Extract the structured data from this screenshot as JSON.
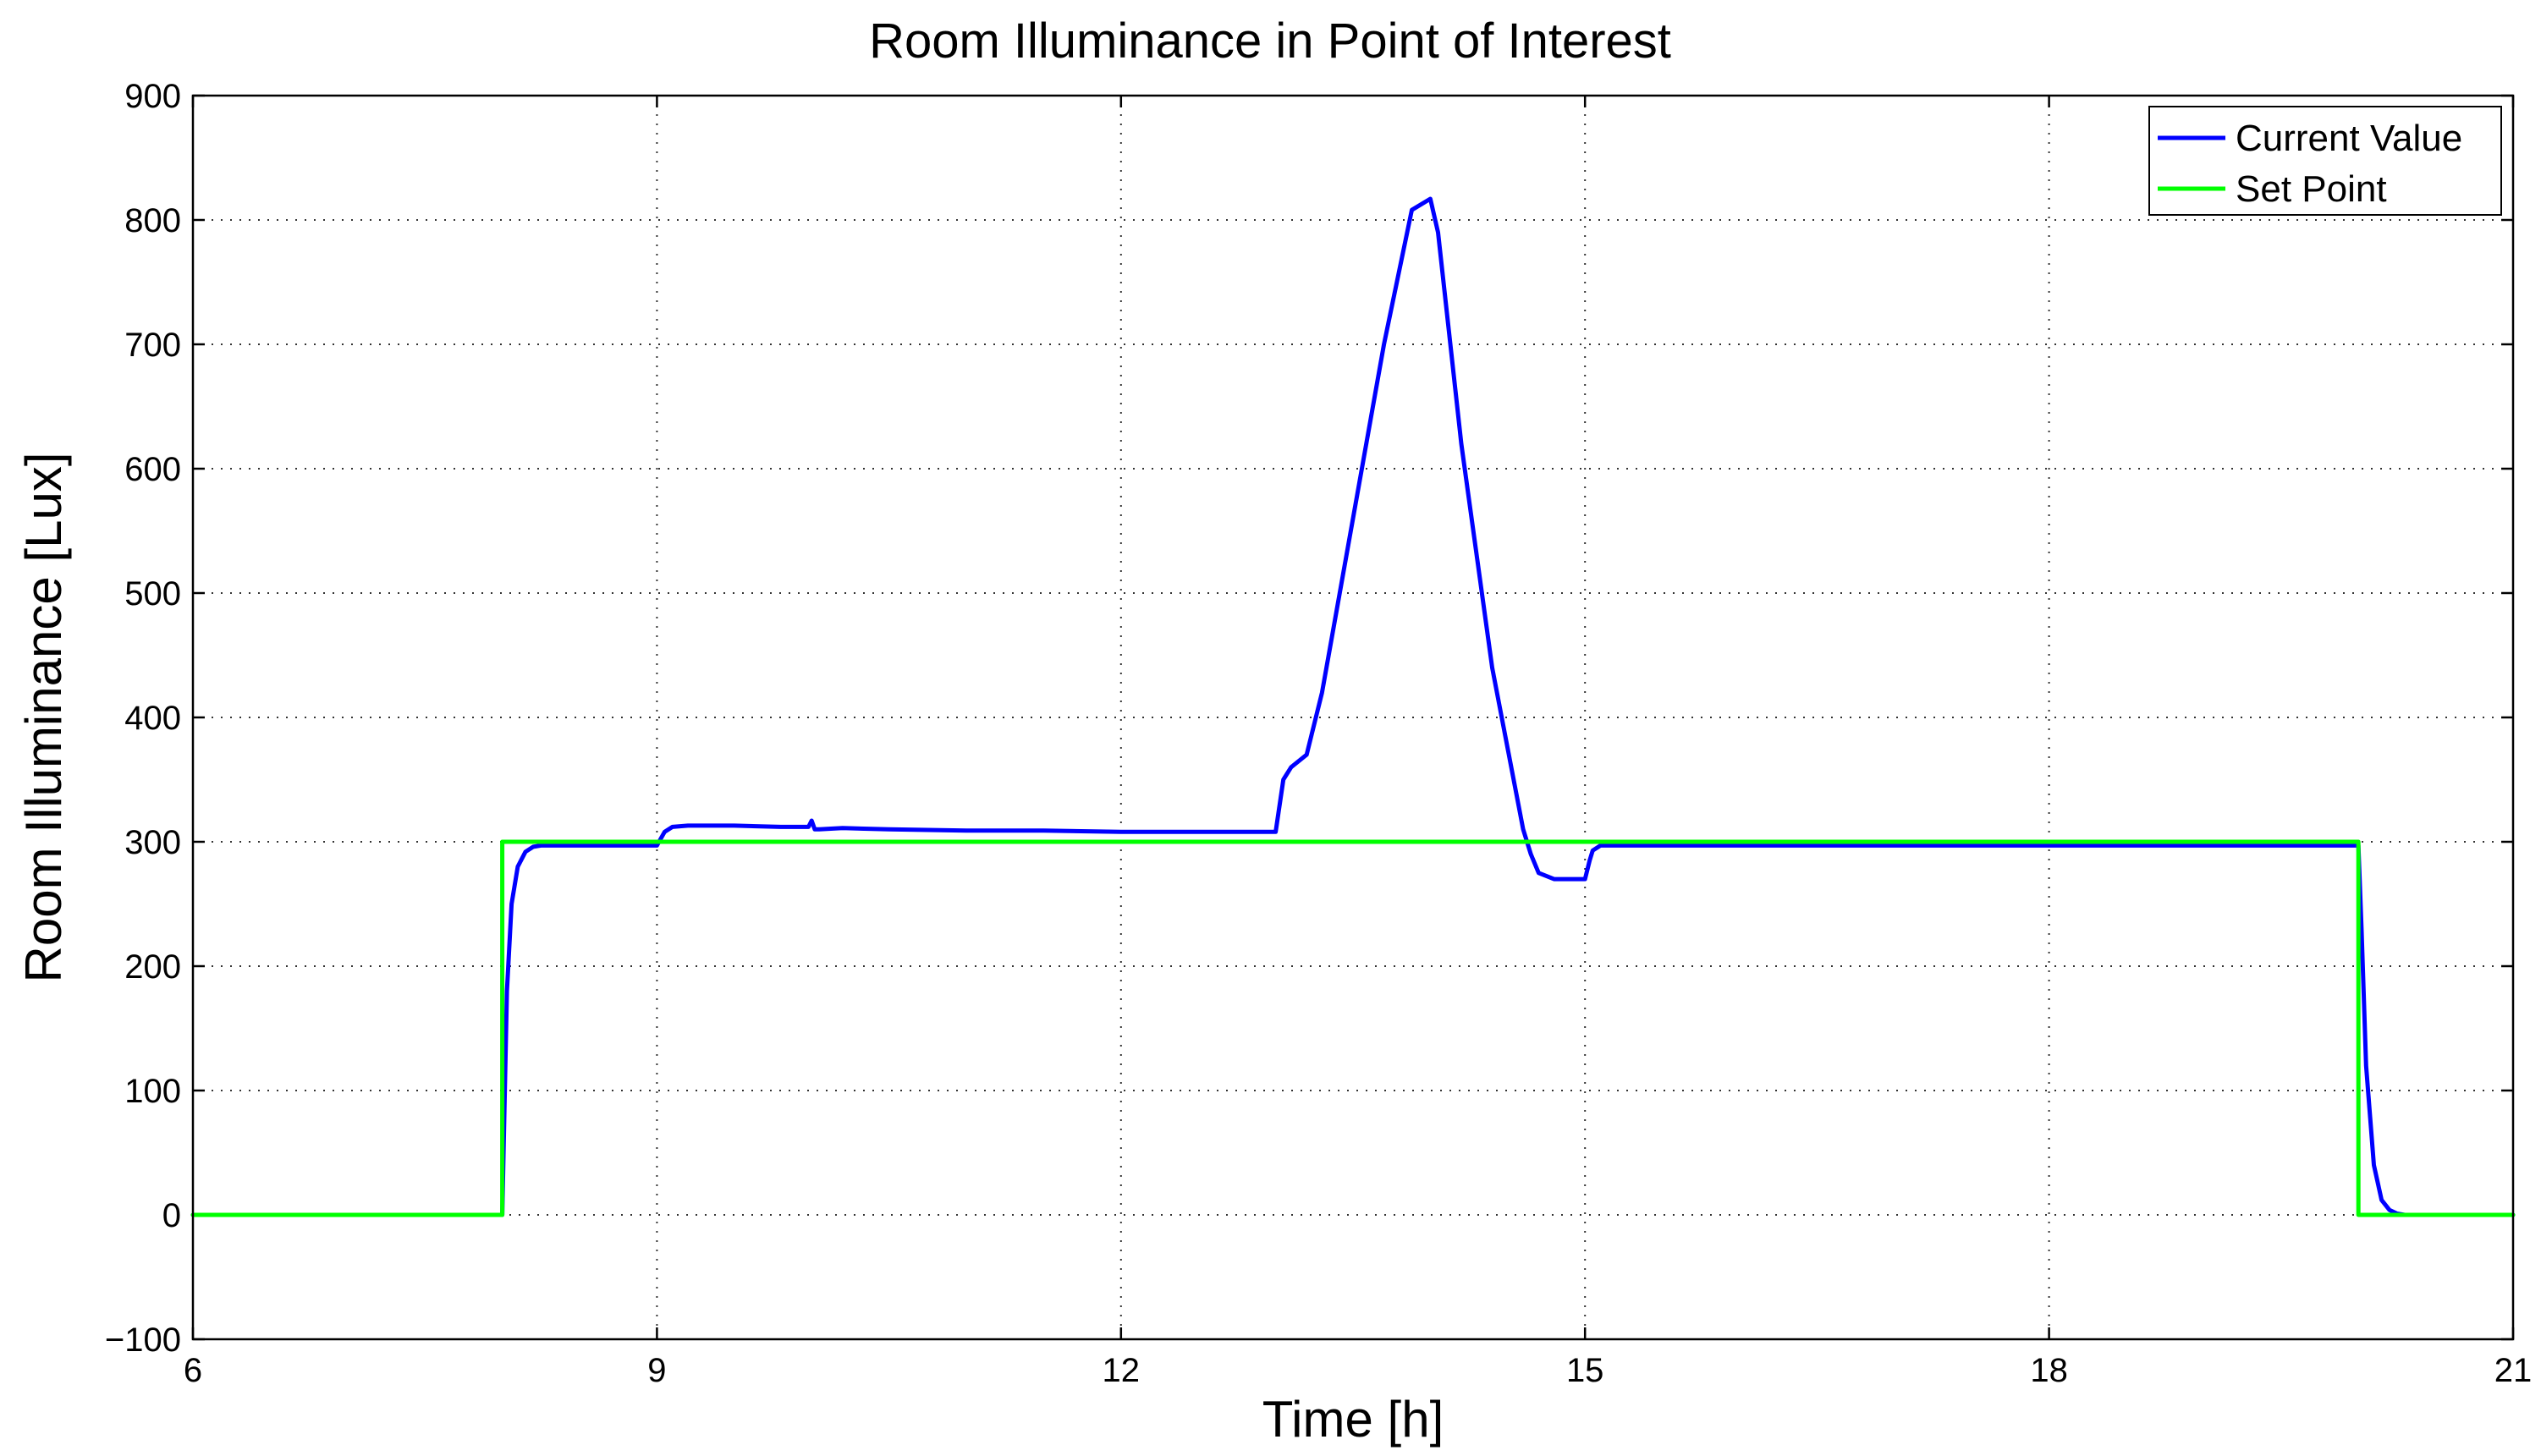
{
  "chart_data": {
    "type": "line",
    "title": "Room Illuminance in Point of Interest",
    "xlabel": "Time [h]",
    "ylabel": "Room Illuminance [Lux]",
    "xlim": [
      6,
      21
    ],
    "ylim": [
      -100,
      900
    ],
    "xticks": [
      6,
      9,
      12,
      15,
      18,
      21
    ],
    "yticks": [
      -100,
      0,
      100,
      200,
      300,
      400,
      500,
      600,
      700,
      800,
      900
    ],
    "xtick_labels": [
      "6",
      "9",
      "12",
      "15",
      "18",
      "21"
    ],
    "ytick_labels": [
      "−100",
      "0",
      "100",
      "200",
      "300",
      "400",
      "500",
      "600",
      "700",
      "800",
      "900"
    ],
    "grid": true,
    "legend_position": "top-right",
    "series": [
      {
        "name": "Current Value",
        "color": "#0000ff",
        "x": [
          6,
          8.0,
          8.01,
          8.03,
          8.06,
          8.1,
          8.15,
          8.2,
          8.25,
          8.3,
          9.0,
          9.05,
          9.1,
          9.2,
          9.5,
          9.8,
          9.98,
          10.0,
          10.02,
          10.05,
          10.2,
          10.5,
          11.0,
          11.5,
          12.0,
          12.5,
          13.0,
          13.05,
          13.1,
          13.2,
          13.3,
          13.5,
          13.7,
          13.88,
          14.0,
          14.05,
          14.2,
          14.4,
          14.6,
          14.65,
          14.7,
          14.8,
          14.9,
          14.97,
          15.0,
          15.03,
          15.05,
          15.1,
          16.0,
          17.0,
          18.0,
          19.0,
          20.0,
          20.02,
          20.05,
          20.1,
          20.15,
          20.2,
          20.25,
          20.3,
          20.4,
          21.0
        ],
        "y": [
          0,
          0,
          60,
          180,
          250,
          280,
          292,
          296,
          297,
          297,
          297,
          308,
          312,
          313,
          313,
          312,
          312,
          317,
          310,
          310,
          311,
          310,
          309,
          309,
          308,
          308,
          308,
          350,
          360,
          370,
          420,
          560,
          700,
          808,
          817,
          790,
          620,
          440,
          310,
          290,
          275,
          270,
          270,
          270,
          270,
          285,
          293,
          297,
          297,
          297,
          297,
          297,
          297,
          230,
          120,
          40,
          12,
          4,
          1,
          0,
          0,
          0
        ]
      },
      {
        "name": "Set Point",
        "color": "#00ff00",
        "x": [
          6,
          8.0,
          8.0,
          20.0,
          20.0,
          21
        ],
        "y": [
          0,
          0,
          300,
          300,
          0,
          0
        ]
      }
    ]
  }
}
